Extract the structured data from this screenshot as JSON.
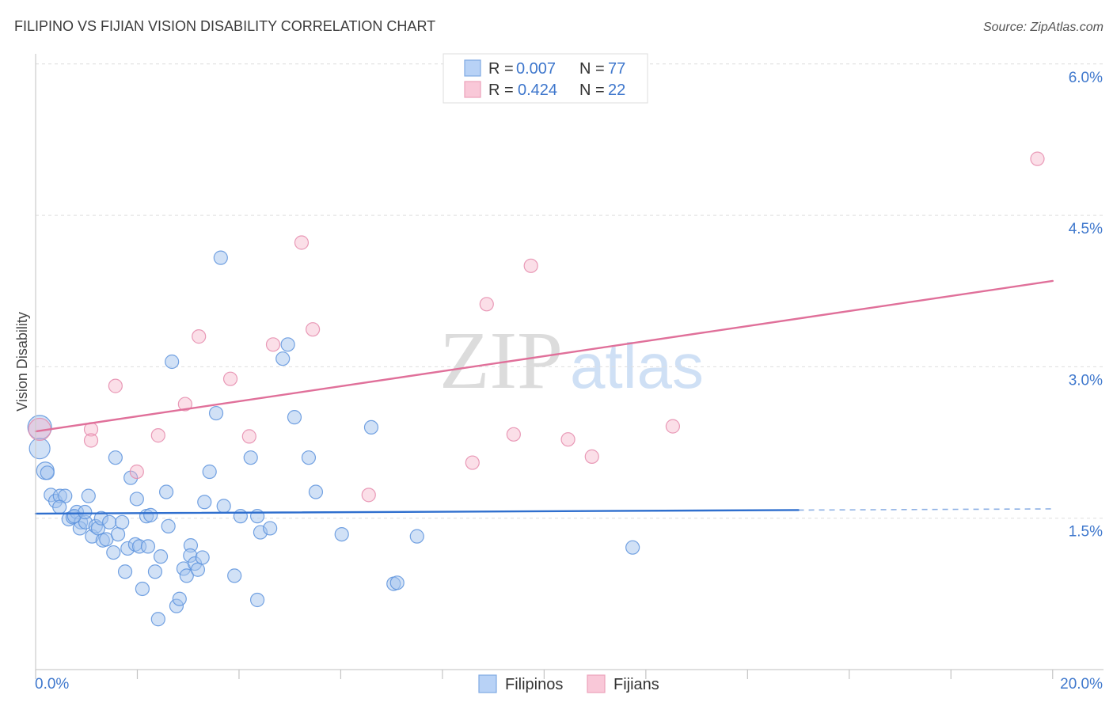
{
  "source": "Source: ZipAtlas.com",
  "watermark": {
    "zip": "ZIP",
    "atlas": "atlas"
  },
  "colors": {
    "filipinos_fill": "#a4c3ee",
    "filipinos_stroke": "#5d93dd",
    "filipinos_line": "#2f6fce",
    "fijians_fill": "#f6b3c8",
    "fijians_stroke": "#e58aab",
    "fijians_line": "#e0709a",
    "accent_text": "#3d76cc"
  },
  "chart_data": {
    "type": "scatter",
    "title": "FILIPINO VS FIJIAN VISION DISABILITY CORRELATION CHART",
    "xlabel": "",
    "ylabel": "Vision Disability",
    "xlim": [
      0,
      21
    ],
    "ylim": [
      0,
      6.1
    ],
    "grid": true,
    "legend_position": "top-center",
    "x_ticks": [
      0,
      2,
      4,
      6,
      8,
      10,
      12,
      14,
      16,
      18,
      20
    ],
    "x_tick_labels": [
      {
        "value": 0,
        "label": "0.0%"
      },
      {
        "value": 20,
        "label": "20.0%"
      }
    ],
    "y_ticks": [
      {
        "value": 1.5,
        "label": "1.5%"
      },
      {
        "value": 3.0,
        "label": "3.0%"
      },
      {
        "value": 4.5,
        "label": "4.5%"
      },
      {
        "value": 6.0,
        "label": "6.0%"
      }
    ],
    "legend": {
      "r_label": "R =",
      "n_label": "N ="
    },
    "series": [
      {
        "name": "Filipinos",
        "r": "0.007",
        "n": "77",
        "fill": "#a4c3ee",
        "stroke": "#5d93dd",
        "line": "#2f6fce",
        "trend": {
          "x": [
            0,
            20
          ],
          "y": [
            1.545,
            1.592
          ],
          "dashed_from": 15
        },
        "points": [
          [
            0.08,
            2.4
          ],
          [
            0.08,
            2.19
          ],
          [
            0.19,
            1.97
          ],
          [
            0.23,
            1.95
          ],
          [
            0.3,
            1.73
          ],
          [
            0.39,
            1.67
          ],
          [
            0.48,
            1.72
          ],
          [
            0.58,
            1.72
          ],
          [
            0.47,
            1.61
          ],
          [
            0.65,
            1.49
          ],
          [
            0.73,
            1.51
          ],
          [
            0.81,
            1.56
          ],
          [
            0.89,
            1.46
          ],
          [
            0.87,
            1.4
          ],
          [
            0.98,
            1.46
          ],
          [
            1.04,
            1.72
          ],
          [
            1.11,
            1.32
          ],
          [
            1.18,
            1.42
          ],
          [
            1.23,
            1.4
          ],
          [
            1.29,
            1.5
          ],
          [
            1.32,
            1.28
          ],
          [
            1.39,
            1.29
          ],
          [
            1.45,
            1.46
          ],
          [
            1.53,
            1.16
          ],
          [
            1.57,
            2.1
          ],
          [
            1.62,
            1.34
          ],
          [
            1.7,
            1.46
          ],
          [
            1.76,
            0.97
          ],
          [
            1.81,
            1.2
          ],
          [
            1.87,
            1.9
          ],
          [
            1.96,
            1.24
          ],
          [
            1.99,
            1.69
          ],
          [
            2.04,
            1.22
          ],
          [
            2.1,
            0.8
          ],
          [
            2.18,
            1.52
          ],
          [
            2.21,
            1.22
          ],
          [
            2.26,
            1.53
          ],
          [
            2.35,
            0.97
          ],
          [
            2.41,
            0.5
          ],
          [
            2.46,
            1.12
          ],
          [
            2.57,
            1.76
          ],
          [
            2.61,
            1.42
          ],
          [
            2.68,
            3.05
          ],
          [
            2.77,
            0.63
          ],
          [
            2.83,
            0.7
          ],
          [
            2.91,
            1.0
          ],
          [
            2.97,
            0.93
          ],
          [
            3.05,
            1.23
          ],
          [
            3.04,
            1.13
          ],
          [
            3.13,
            1.05
          ],
          [
            3.19,
            0.99
          ],
          [
            3.28,
            1.11
          ],
          [
            3.32,
            1.66
          ],
          [
            3.42,
            1.96
          ],
          [
            3.55,
            2.54
          ],
          [
            3.64,
            4.08
          ],
          [
            3.7,
            1.62
          ],
          [
            3.91,
            0.93
          ],
          [
            4.03,
            1.52
          ],
          [
            4.23,
            2.1
          ],
          [
            4.36,
            1.52
          ],
          [
            4.36,
            0.69
          ],
          [
            4.42,
            1.36
          ],
          [
            4.61,
            1.4
          ],
          [
            4.86,
            3.08
          ],
          [
            4.96,
            3.22
          ],
          [
            5.09,
            2.5
          ],
          [
            5.37,
            2.1
          ],
          [
            5.51,
            1.76
          ],
          [
            6.02,
            1.34
          ],
          [
            6.6,
            2.4
          ],
          [
            7.04,
            0.85
          ],
          [
            7.11,
            0.86
          ],
          [
            7.5,
            1.32
          ],
          [
            11.74,
            1.21
          ],
          [
            0.76,
            1.52
          ],
          [
            0.97,
            1.56
          ]
        ]
      },
      {
        "name": "Fijians",
        "r": "0.424",
        "n": "22",
        "fill": "#f6b3c8",
        "stroke": "#e58aab",
        "line": "#e0709a",
        "trend": {
          "x": [
            0,
            20
          ],
          "y": [
            2.36,
            3.85
          ],
          "dashed_from": 20
        },
        "points": [
          [
            0.08,
            2.38
          ],
          [
            1.09,
            2.38
          ],
          [
            1.57,
            2.81
          ],
          [
            1.09,
            2.27
          ],
          [
            1.99,
            1.96
          ],
          [
            2.41,
            2.32
          ],
          [
            2.94,
            2.63
          ],
          [
            3.21,
            3.3
          ],
          [
            3.83,
            2.88
          ],
          [
            4.2,
            2.31
          ],
          [
            4.67,
            3.22
          ],
          [
            5.23,
            4.23
          ],
          [
            5.45,
            3.37
          ],
          [
            6.55,
            1.73
          ],
          [
            8.59,
            2.05
          ],
          [
            8.87,
            3.62
          ],
          [
            9.4,
            2.33
          ],
          [
            9.74,
            4.0
          ],
          [
            10.47,
            2.28
          ],
          [
            10.94,
            2.11
          ],
          [
            12.53,
            2.41
          ],
          [
            19.7,
            5.06
          ]
        ]
      }
    ]
  }
}
